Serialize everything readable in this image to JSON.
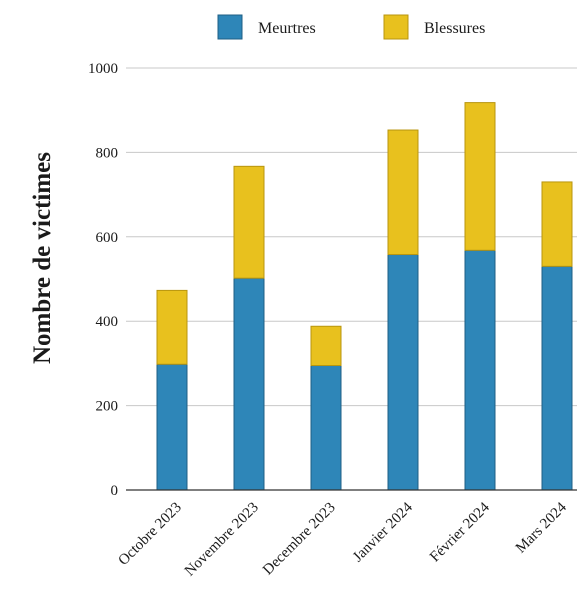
{
  "chart_data": {
    "type": "bar",
    "stacked": true,
    "categories": [
      "Octobre 2023",
      "Novembre 2023",
      "Decembre 2023",
      "Janvier 2024",
      "Février 2024",
      "Mars 2024"
    ],
    "series": [
      {
        "name": "Meurtres",
        "color": "#2e86b8",
        "values": [
          298,
          502,
          295,
          558,
          568,
          530
        ]
      },
      {
        "name": "Blessures",
        "color": "#e8c11e",
        "values": [
          175,
          265,
          93,
          295,
          350,
          200
        ]
      }
    ],
    "ylabel": "Nombre de victimes",
    "xlabel": "",
    "ylim": [
      0,
      1000
    ],
    "yticks": [
      0,
      200,
      400,
      600,
      800,
      1000
    ],
    "grid": true,
    "legend_position": "top"
  }
}
